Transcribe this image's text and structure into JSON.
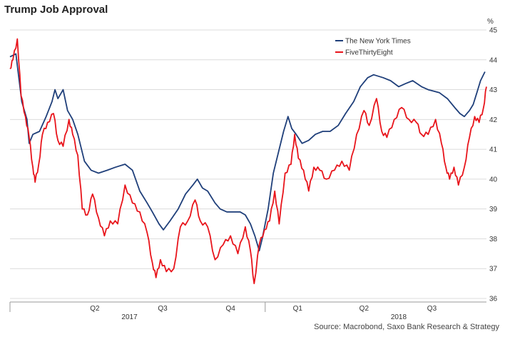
{
  "title": "Trump Job Approval",
  "source": "Source: Macrobond, Saxo Bank Research & Strategy",
  "chart_data": {
    "type": "line",
    "title": "Trump Job Approval",
    "ylabel": "%",
    "ylim": [
      36,
      45
    ],
    "yticks": [
      36,
      37,
      38,
      39,
      40,
      41,
      42,
      43,
      44,
      45
    ],
    "xlim": [
      "2017-01-20",
      "2018-10-28"
    ],
    "x_quarter_ticks": [
      {
        "label": "Q2",
        "date": "2017-05-15"
      },
      {
        "label": "Q3",
        "date": "2017-08-15"
      },
      {
        "label": "Q4",
        "date": "2017-11-15"
      },
      {
        "label": "Q1",
        "date": "2018-02-14"
      },
      {
        "label": "Q2",
        "date": "2018-05-15"
      },
      {
        "label": "Q3",
        "date": "2018-08-15"
      }
    ],
    "x_year_ticks": [
      {
        "label": "2017",
        "date": "2017-07-01"
      },
      {
        "label": "2018",
        "date": "2018-07-01"
      }
    ],
    "legend_position": "top-right",
    "grid": "horizontal",
    "series": [
      {
        "name": "The New York Times",
        "color": "#1f3f7a",
        "points": [
          [
            "2017-01-20",
            44.1
          ],
          [
            "2017-01-28",
            44.2
          ],
          [
            "2017-02-05",
            42.6
          ],
          [
            "2017-02-12",
            42.0
          ],
          [
            "2017-02-15",
            41.2
          ],
          [
            "2017-02-20",
            41.5
          ],
          [
            "2017-03-01",
            41.6
          ],
          [
            "2017-03-10",
            42.1
          ],
          [
            "2017-03-18",
            42.6
          ],
          [
            "2017-03-22",
            43.0
          ],
          [
            "2017-03-26",
            42.7
          ],
          [
            "2017-04-02",
            43.0
          ],
          [
            "2017-04-08",
            42.3
          ],
          [
            "2017-04-15",
            42.0
          ],
          [
            "2017-04-22",
            41.5
          ],
          [
            "2017-05-01",
            40.6
          ],
          [
            "2017-05-10",
            40.3
          ],
          [
            "2017-05-20",
            40.2
          ],
          [
            "2017-06-01",
            40.3
          ],
          [
            "2017-06-12",
            40.4
          ],
          [
            "2017-06-25",
            40.5
          ],
          [
            "2017-07-05",
            40.3
          ],
          [
            "2017-07-15",
            39.6
          ],
          [
            "2017-07-25",
            39.2
          ],
          [
            "2017-08-01",
            38.9
          ],
          [
            "2017-08-10",
            38.5
          ],
          [
            "2017-08-16",
            38.3
          ],
          [
            "2017-08-25",
            38.6
          ],
          [
            "2017-09-05",
            39.0
          ],
          [
            "2017-09-15",
            39.5
          ],
          [
            "2017-09-25",
            39.8
          ],
          [
            "2017-10-01",
            40.0
          ],
          [
            "2017-10-08",
            39.7
          ],
          [
            "2017-10-15",
            39.6
          ],
          [
            "2017-10-25",
            39.2
          ],
          [
            "2017-11-01",
            39.0
          ],
          [
            "2017-11-10",
            38.9
          ],
          [
            "2017-11-20",
            38.9
          ],
          [
            "2017-11-28",
            38.9
          ],
          [
            "2017-12-05",
            38.8
          ],
          [
            "2017-12-12",
            38.5
          ],
          [
            "2017-12-18",
            38.1
          ],
          [
            "2017-12-24",
            37.6
          ],
          [
            "2017-12-28",
            38.0
          ],
          [
            "2018-01-05",
            39.0
          ],
          [
            "2018-01-12",
            40.2
          ],
          [
            "2018-01-20",
            41.0
          ],
          [
            "2018-01-26",
            41.6
          ],
          [
            "2018-02-01",
            42.1
          ],
          [
            "2018-02-06",
            41.7
          ],
          [
            "2018-02-12",
            41.5
          ],
          [
            "2018-02-20",
            41.2
          ],
          [
            "2018-03-01",
            41.3
          ],
          [
            "2018-03-10",
            41.5
          ],
          [
            "2018-03-20",
            41.6
          ],
          [
            "2018-03-30",
            41.6
          ],
          [
            "2018-04-10",
            41.8
          ],
          [
            "2018-04-20",
            42.2
          ],
          [
            "2018-05-01",
            42.6
          ],
          [
            "2018-05-10",
            43.1
          ],
          [
            "2018-05-20",
            43.4
          ],
          [
            "2018-05-28",
            43.5
          ],
          [
            "2018-06-10",
            43.4
          ],
          [
            "2018-06-20",
            43.3
          ],
          [
            "2018-07-01",
            43.1
          ],
          [
            "2018-07-10",
            43.2
          ],
          [
            "2018-07-20",
            43.3
          ],
          [
            "2018-08-01",
            43.1
          ],
          [
            "2018-08-10",
            43.0
          ],
          [
            "2018-08-25",
            42.9
          ],
          [
            "2018-09-05",
            42.7
          ],
          [
            "2018-09-15",
            42.4
          ],
          [
            "2018-09-22",
            42.2
          ],
          [
            "2018-09-28",
            42.1
          ],
          [
            "2018-10-05",
            42.3
          ],
          [
            "2018-10-10",
            42.5
          ],
          [
            "2018-10-15",
            42.9
          ],
          [
            "2018-10-20",
            43.3
          ],
          [
            "2018-10-26",
            43.6
          ]
        ]
      },
      {
        "name": "FiveThirtyEight",
        "color": "#e8141b",
        "points": [
          [
            "2017-01-20",
            43.7
          ],
          [
            "2017-01-24",
            44.0
          ],
          [
            "2017-01-30",
            44.7
          ],
          [
            "2017-02-04",
            42.8
          ],
          [
            "2017-02-10",
            42.1
          ],
          [
            "2017-02-15",
            41.4
          ],
          [
            "2017-02-20",
            40.4
          ],
          [
            "2017-02-23",
            39.9
          ],
          [
            "2017-02-28",
            40.5
          ],
          [
            "2017-03-05",
            41.5
          ],
          [
            "2017-03-12",
            41.9
          ],
          [
            "2017-03-20",
            42.2
          ],
          [
            "2017-03-26",
            41.3
          ],
          [
            "2017-04-02",
            41.1
          ],
          [
            "2017-04-10",
            42.0
          ],
          [
            "2017-04-15",
            41.5
          ],
          [
            "2017-04-22",
            40.8
          ],
          [
            "2017-04-28",
            39.0
          ],
          [
            "2017-05-05",
            38.8
          ],
          [
            "2017-05-12",
            39.5
          ],
          [
            "2017-05-20",
            38.7
          ],
          [
            "2017-05-28",
            38.1
          ],
          [
            "2017-06-05",
            38.6
          ],
          [
            "2017-06-15",
            38.5
          ],
          [
            "2017-06-25",
            39.8
          ],
          [
            "2017-07-05",
            39.2
          ],
          [
            "2017-07-15",
            38.9
          ],
          [
            "2017-07-25",
            38.2
          ],
          [
            "2017-08-01",
            37.2
          ],
          [
            "2017-08-06",
            36.7
          ],
          [
            "2017-08-12",
            37.3
          ],
          [
            "2017-08-20",
            36.9
          ],
          [
            "2017-08-30",
            37.0
          ],
          [
            "2017-09-08",
            38.4
          ],
          [
            "2017-09-18",
            38.6
          ],
          [
            "2017-09-28",
            39.3
          ],
          [
            "2017-10-05",
            38.6
          ],
          [
            "2017-10-15",
            38.4
          ],
          [
            "2017-10-25",
            37.3
          ],
          [
            "2017-11-05",
            37.8
          ],
          [
            "2017-11-15",
            38.1
          ],
          [
            "2017-11-25",
            37.5
          ],
          [
            "2017-12-05",
            38.4
          ],
          [
            "2017-12-12",
            37.6
          ],
          [
            "2017-12-17",
            36.5
          ],
          [
            "2017-12-24",
            37.8
          ],
          [
            "2017-12-31",
            38.3
          ],
          [
            "2018-01-07",
            38.6
          ],
          [
            "2018-01-14",
            39.6
          ],
          [
            "2018-01-20",
            38.5
          ],
          [
            "2018-01-28",
            40.2
          ],
          [
            "2018-02-05",
            40.5
          ],
          [
            "2018-02-10",
            41.5
          ],
          [
            "2018-02-15",
            40.7
          ],
          [
            "2018-02-22",
            40.3
          ],
          [
            "2018-03-01",
            39.6
          ],
          [
            "2018-03-08",
            40.4
          ],
          [
            "2018-03-16",
            40.3
          ],
          [
            "2018-03-25",
            40.0
          ],
          [
            "2018-04-05",
            40.3
          ],
          [
            "2018-04-15",
            40.6
          ],
          [
            "2018-04-25",
            40.3
          ],
          [
            "2018-05-05",
            41.5
          ],
          [
            "2018-05-15",
            42.3
          ],
          [
            "2018-05-22",
            41.8
          ],
          [
            "2018-06-01",
            42.7
          ],
          [
            "2018-06-08",
            41.6
          ],
          [
            "2018-06-15",
            41.4
          ],
          [
            "2018-06-25",
            42.0
          ],
          [
            "2018-07-05",
            42.4
          ],
          [
            "2018-07-15",
            42.0
          ],
          [
            "2018-07-25",
            41.9
          ],
          [
            "2018-08-01",
            41.5
          ],
          [
            "2018-08-10",
            41.5
          ],
          [
            "2018-08-20",
            42.0
          ],
          [
            "2018-08-28",
            41.2
          ],
          [
            "2018-09-03",
            40.4
          ],
          [
            "2018-09-08",
            40.0
          ],
          [
            "2018-09-14",
            40.4
          ],
          [
            "2018-09-20",
            39.8
          ],
          [
            "2018-09-28",
            40.4
          ],
          [
            "2018-10-05",
            41.4
          ],
          [
            "2018-10-12",
            42.1
          ],
          [
            "2018-10-18",
            41.9
          ],
          [
            "2018-10-24",
            42.4
          ],
          [
            "2018-10-28",
            43.1
          ]
        ]
      }
    ]
  }
}
